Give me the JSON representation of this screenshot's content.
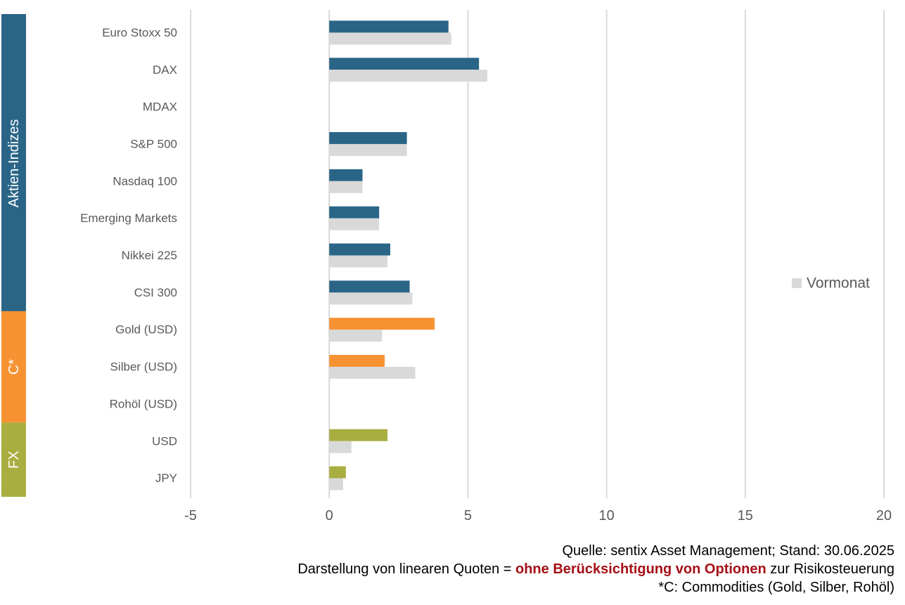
{
  "chart_data": {
    "type": "bar",
    "orientation": "horizontal",
    "categories": [
      "Euro Stoxx 50",
      "DAX",
      "MDAX",
      "S&P 500",
      "Nasdaq 100",
      "Emerging Markets",
      "Nikkei 225",
      "CSI 300",
      "Gold (USD)",
      "Silber (USD)",
      "Rohöl (USD)",
      "USD",
      "JPY"
    ],
    "series": [
      {
        "values": [
          4.3,
          5.4,
          0,
          2.8,
          1.2,
          1.8,
          2.2,
          2.9,
          3.8,
          2.0,
          0,
          2.1,
          0.6
        ],
        "colors": [
          "#2a6587",
          "#2a6587",
          "#2a6587",
          "#2a6587",
          "#2a6587",
          "#2a6587",
          "#2a6587",
          "#2a6587",
          "#f79232",
          "#f79232",
          "#f79232",
          "#a9ae40",
          "#a9ae40"
        ]
      },
      {
        "name": "Vormonat",
        "values": [
          4.4,
          5.7,
          0,
          2.8,
          1.2,
          1.8,
          2.1,
          3.0,
          1.9,
          3.1,
          0,
          0.8,
          0.5
        ],
        "color": "#d9d9d9"
      }
    ],
    "xlim": [
      -5,
      20
    ],
    "xticks": [
      "-5",
      "0",
      "5",
      "10",
      "15",
      "20"
    ],
    "grid": true,
    "legend_position": "right",
    "groups": [
      {
        "label": "Aktien-Indizes",
        "color": "#2a6587",
        "count": 8
      },
      {
        "label": "C*",
        "color": "#f79232",
        "count": 3
      },
      {
        "label": "FX",
        "color": "#a9ae40",
        "count": 2
      }
    ]
  },
  "footer": {
    "line1": "Quelle: sentix Asset Management; Stand: 30.06.2025",
    "line2_pre": "Darstellung von linearen Quoten = ",
    "line2_highlight": "ohne Berücksichtigung von Optionen",
    "line2_post": " zur Risikosteuerung",
    "line3": "*C: Commodities (Gold, Silber, Rohöl)"
  }
}
